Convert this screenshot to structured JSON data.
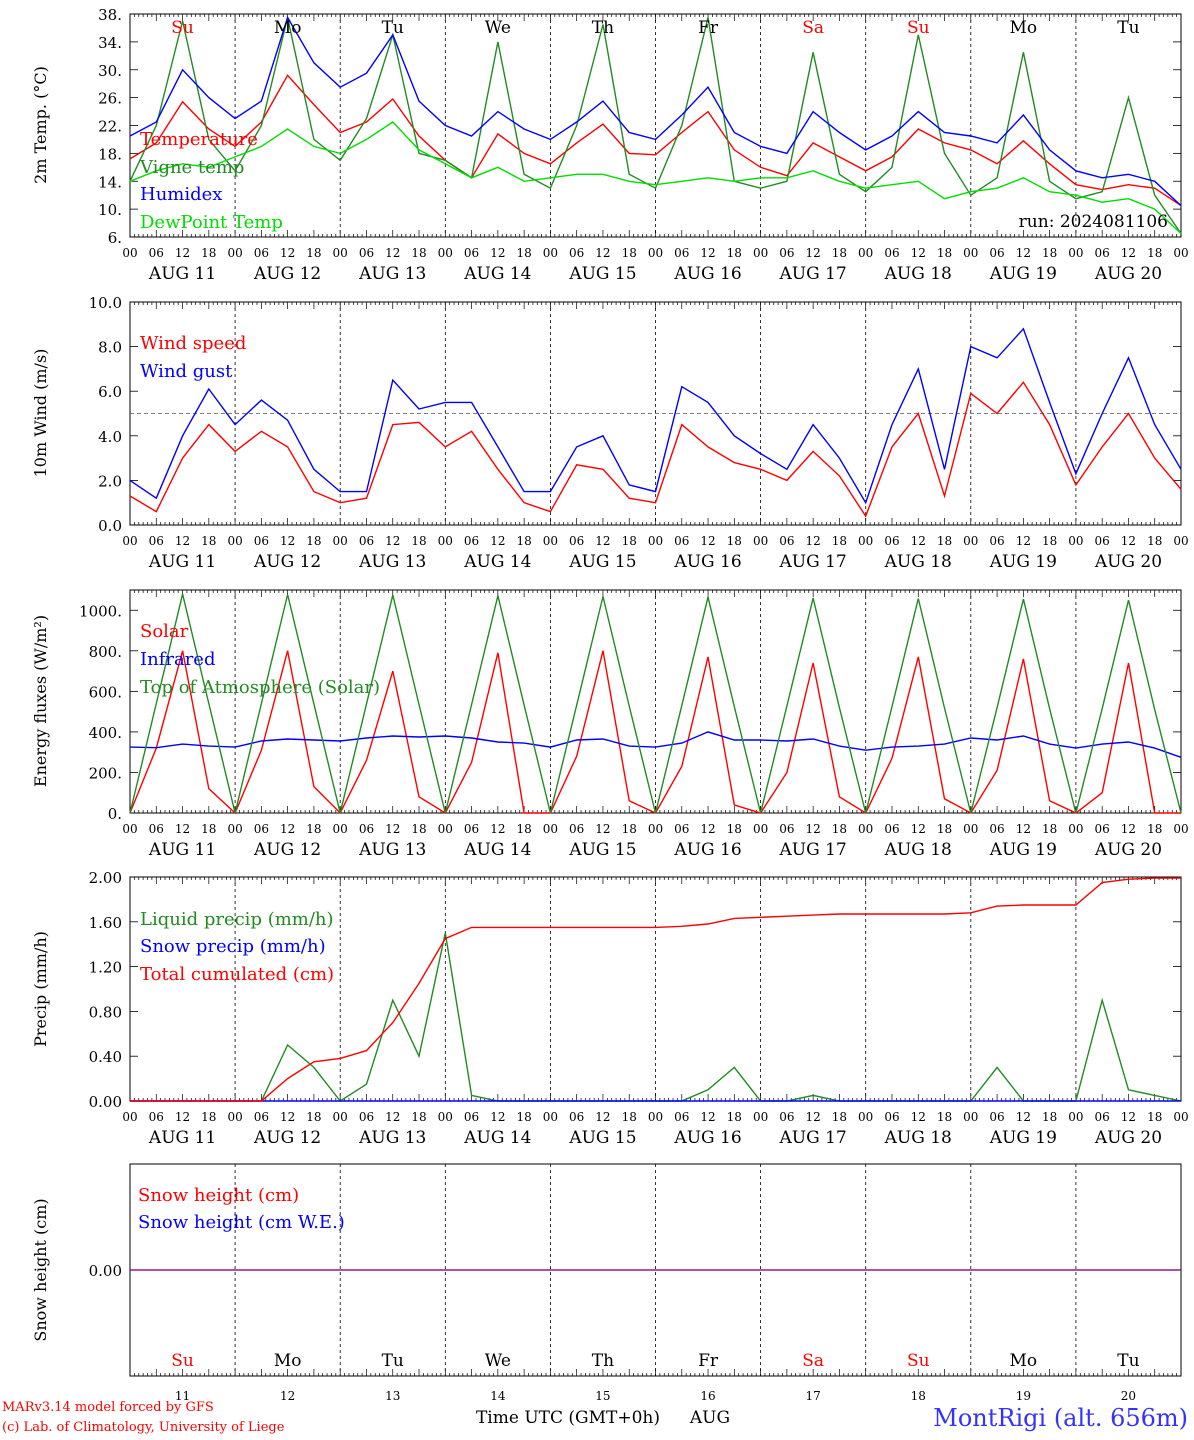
{
  "footer": {
    "credit_line1": "MARv3.14 model forced by GFS",
    "credit_line2": "(c) Lab. of Climatology, University of Liege",
    "time_label": "Time UTC (GMT+0h)",
    "month_label": "AUG",
    "station": "MontRigi (alt. 656m)"
  },
  "chart_data": [
    {
      "type": "line",
      "ylabel": "2m Temp. (°C)",
      "ylim": [
        6,
        38
      ],
      "yticks": [
        "6.",
        "10.",
        "14.",
        "18.",
        "22.",
        "26.",
        "30.",
        "34.",
        "38."
      ],
      "tick_hours": [
        "00",
        "06",
        "12",
        "18"
      ],
      "day_labels": [
        "AUG 11",
        "AUG 12",
        "AUG 13",
        "AUG 14",
        "AUG 15",
        "AUG 16",
        "AUG 17",
        "AUG 18",
        "AUG 19",
        "AUG 20"
      ],
      "weekdays": [
        "Su",
        "Mo",
        "Tu",
        "We",
        "Th",
        "Fr",
        "Sa",
        "Su",
        "Mo",
        "Tu"
      ],
      "weekday_colors": [
        "#ff0000",
        "#000000",
        "#000000",
        "#000000",
        "#000000",
        "#000000",
        "#ff0000",
        "#ff0000",
        "#000000",
        "#000000"
      ],
      "annotation": "run: 2024081106",
      "grid": "dashed vertical at 00 UTC",
      "legend_position": "top-left",
      "x_hours": [
        0,
        6,
        12,
        18,
        24,
        30,
        36,
        42,
        48,
        54,
        60,
        66,
        72,
        78,
        84,
        90,
        96,
        102,
        108,
        114,
        120,
        126,
        132,
        138,
        144,
        150,
        156,
        162,
        168,
        174,
        180,
        186,
        192,
        198,
        204,
        210,
        216,
        222,
        228,
        234,
        240
      ],
      "series": [
        {
          "name": "Temperature",
          "color": "#ff0000",
          "values": [
            17.2,
            19.5,
            25.4,
            21.5,
            19.0,
            22.5,
            29.2,
            25.0,
            21.0,
            22.5,
            25.8,
            20.5,
            17.0,
            14.5,
            20.8,
            18.0,
            16.5,
            19.5,
            22.2,
            18.0,
            17.8,
            21.0,
            24.0,
            18.5,
            16.0,
            14.8,
            19.5,
            17.5,
            15.5,
            17.5,
            21.5,
            19.5,
            18.5,
            16.5,
            19.8,
            16.5,
            13.5,
            12.8,
            13.5,
            13.0,
            10.5
          ]
        },
        {
          "name": "Vigne temp",
          "color": "#228b22",
          "values": [
            14.0,
            22.0,
            37.0,
            20.0,
            15.5,
            22.0,
            37.5,
            20.0,
            17.0,
            23.0,
            35.0,
            18.0,
            17.0,
            14.5,
            34.0,
            15.0,
            13.0,
            22.0,
            36.5,
            15.0,
            13.0,
            22.0,
            37.5,
            14.0,
            13.0,
            14.0,
            32.5,
            15.0,
            12.5,
            16.0,
            35.0,
            18.0,
            12.0,
            14.5,
            32.5,
            14.0,
            11.5,
            12.5,
            26.0,
            12.0,
            6.5
          ]
        },
        {
          "name": "Humidex",
          "color": "#0000ff",
          "values": [
            20.5,
            22.5,
            30.0,
            26.0,
            23.0,
            25.5,
            37.5,
            31.0,
            27.5,
            29.5,
            35.0,
            25.5,
            22.0,
            20.5,
            24.0,
            21.5,
            20.0,
            22.5,
            25.5,
            21.0,
            20.0,
            23.5,
            27.5,
            21.0,
            19.0,
            18.0,
            24.0,
            21.0,
            18.5,
            20.5,
            24.0,
            21.0,
            20.5,
            19.5,
            23.5,
            18.5,
            15.5,
            14.5,
            15.0,
            14.0,
            10.5
          ]
        },
        {
          "name": "DewPoint Temp",
          "color": "#00dd00",
          "values": [
            14.0,
            15.5,
            16.5,
            16.0,
            17.5,
            19.0,
            21.5,
            19.0,
            18.0,
            20.0,
            22.5,
            18.5,
            16.5,
            14.5,
            16.0,
            14.0,
            14.5,
            15.0,
            15.0,
            14.0,
            13.5,
            14.0,
            14.5,
            14.0,
            14.5,
            14.5,
            15.5,
            14.0,
            13.0,
            13.5,
            14.0,
            11.5,
            12.5,
            13.0,
            14.5,
            12.5,
            12.0,
            11.0,
            11.5,
            10.0,
            6.5
          ]
        }
      ]
    },
    {
      "type": "line",
      "ylabel": "10m Wind (m/s)",
      "ylim": [
        0,
        10
      ],
      "yticks": [
        "0.0",
        "2.0",
        "4.0",
        "6.0",
        "8.0",
        "10.0"
      ],
      "reference_line": 5,
      "x_hours": [
        0,
        6,
        12,
        18,
        24,
        30,
        36,
        42,
        48,
        54,
        60,
        66,
        72,
        78,
        84,
        90,
        96,
        102,
        108,
        114,
        120,
        126,
        132,
        138,
        144,
        150,
        156,
        162,
        168,
        174,
        180,
        186,
        192,
        198,
        204,
        210,
        216,
        222,
        228,
        234,
        240
      ],
      "series": [
        {
          "name": "Wind speed",
          "color": "#ff0000",
          "values": [
            1.3,
            0.6,
            3.0,
            4.5,
            3.3,
            4.2,
            3.5,
            1.5,
            1.0,
            1.2,
            4.5,
            4.6,
            3.5,
            4.2,
            2.5,
            1.0,
            0.6,
            2.7,
            2.5,
            1.2,
            1.0,
            4.5,
            3.5,
            2.8,
            2.5,
            2.0,
            3.3,
            2.2,
            0.4,
            3.5,
            5.0,
            1.3,
            5.9,
            5.0,
            6.4,
            4.5,
            1.8,
            3.5,
            5.0,
            3.0,
            1.6
          ]
        },
        {
          "name": "Wind gust",
          "color": "#0000ff",
          "values": [
            2.0,
            1.2,
            4.0,
            6.1,
            4.5,
            5.6,
            4.7,
            2.5,
            1.5,
            1.5,
            6.5,
            5.2,
            5.5,
            5.5,
            3.5,
            1.5,
            1.5,
            3.5,
            4.0,
            1.8,
            1.5,
            6.2,
            5.5,
            4.0,
            3.2,
            2.5,
            4.5,
            3.0,
            1.0,
            4.5,
            7.0,
            2.5,
            8.0,
            7.5,
            8.8,
            5.5,
            2.3,
            5.0,
            7.5,
            4.5,
            2.5
          ]
        }
      ]
    },
    {
      "type": "line",
      "ylabel": "Energy fluxes (W/m²)",
      "ylim": [
        0,
        1100
      ],
      "yticks": [
        "0.",
        "200.",
        "400.",
        "600.",
        "800.",
        "1000."
      ],
      "x_hours": [
        0,
        6,
        12,
        18,
        24,
        30,
        36,
        42,
        48,
        54,
        60,
        66,
        72,
        78,
        84,
        90,
        96,
        102,
        108,
        114,
        120,
        126,
        132,
        138,
        144,
        150,
        156,
        162,
        168,
        174,
        180,
        186,
        192,
        198,
        204,
        210,
        216,
        222,
        228,
        234,
        240
      ],
      "series": [
        {
          "name": "Solar",
          "color": "#ff0000",
          "values": [
            0,
            320,
            800,
            120,
            0,
            310,
            800,
            130,
            0,
            260,
            700,
            80,
            0,
            250,
            790,
            0,
            0,
            280,
            800,
            60,
            0,
            230,
            770,
            40,
            0,
            200,
            740,
            80,
            0,
            270,
            770,
            70,
            0,
            210,
            760,
            60,
            0,
            100,
            740,
            0,
            0
          ]
        },
        {
          "name": "Infrared",
          "color": "#0000ff",
          "values": [
            325,
            322,
            340,
            330,
            325,
            355,
            365,
            360,
            355,
            370,
            380,
            375,
            380,
            370,
            350,
            345,
            325,
            360,
            365,
            330,
            325,
            345,
            400,
            360,
            360,
            355,
            365,
            330,
            310,
            325,
            330,
            340,
            370,
            360,
            380,
            340,
            320,
            340,
            350,
            320,
            275
          ]
        },
        {
          "name": "Top of Atmosphere (Solar)",
          "color": "#228b22",
          "values": [
            0,
            540,
            1080,
            540,
            0,
            540,
            1078,
            538,
            0,
            538,
            1075,
            535,
            0,
            535,
            1072,
            532,
            0,
            532,
            1068,
            528,
            0,
            530,
            1065,
            525,
            0,
            528,
            1060,
            520,
            0,
            525,
            1058,
            518,
            0,
            520,
            1055,
            515,
            0,
            515,
            1050,
            510,
            0
          ]
        }
      ]
    },
    {
      "type": "line",
      "ylabel": "Precip (mm/h)",
      "ylim": [
        0,
        2
      ],
      "yticks": [
        "0.00",
        "0.40",
        "0.80",
        "1.20",
        "1.60",
        "2.00"
      ],
      "x_hours": [
        0,
        6,
        12,
        18,
        24,
        30,
        36,
        42,
        48,
        54,
        60,
        66,
        72,
        78,
        84,
        90,
        96,
        102,
        108,
        114,
        120,
        126,
        132,
        138,
        144,
        150,
        156,
        162,
        168,
        174,
        180,
        186,
        192,
        198,
        204,
        210,
        216,
        222,
        228,
        234,
        240
      ],
      "series": [
        {
          "name": "Liquid precip (mm/h)",
          "color": "#228b22",
          "values": [
            0,
            0,
            0,
            0,
            0,
            0,
            0.5,
            0.3,
            0,
            0.15,
            0.9,
            0.4,
            1.5,
            0.05,
            0,
            0,
            0,
            0,
            0,
            0,
            0,
            0,
            0.1,
            0.3,
            0,
            0,
            0.05,
            0,
            0,
            0,
            0,
            0,
            0,
            0.3,
            0,
            0,
            0,
            0.9,
            0.1,
            0.05,
            0
          ]
        },
        {
          "name": "Snow precip (mm/h)",
          "color": "#0000ff",
          "values": [
            0,
            0,
            0,
            0,
            0,
            0,
            0,
            0,
            0,
            0,
            0,
            0,
            0,
            0,
            0,
            0,
            0,
            0,
            0,
            0,
            0,
            0,
            0,
            0,
            0,
            0,
            0,
            0,
            0,
            0,
            0,
            0,
            0,
            0,
            0,
            0,
            0,
            0,
            0,
            0,
            0
          ]
        },
        {
          "name": "Total cumulated (cm)",
          "color": "#ff0000",
          "values": [
            0,
            0,
            0,
            0,
            0,
            0,
            0.2,
            0.35,
            0.38,
            0.45,
            0.7,
            1.05,
            1.45,
            1.55,
            1.55,
            1.55,
            1.55,
            1.55,
            1.55,
            1.55,
            1.55,
            1.56,
            1.58,
            1.63,
            1.64,
            1.65,
            1.66,
            1.67,
            1.67,
            1.67,
            1.67,
            1.67,
            1.68,
            1.74,
            1.75,
            1.75,
            1.75,
            1.95,
            1.98,
            1.99,
            1.99
          ]
        }
      ]
    },
    {
      "type": "line",
      "ylabel": "Snow height (cm)",
      "yticks": [
        "0.00"
      ],
      "x_hours": [
        0,
        240
      ],
      "bottom_day_numbers": [
        "11",
        "12",
        "13",
        "14",
        "15",
        "16",
        "17",
        "18",
        "19",
        "20"
      ],
      "series": [
        {
          "name": "Snow height (cm)",
          "color": "#ff0000",
          "values": [
            0,
            0
          ]
        },
        {
          "name": "Snow height (cm W.E.)",
          "color": "#0000ff",
          "values": [
            0,
            0
          ]
        }
      ]
    }
  ]
}
